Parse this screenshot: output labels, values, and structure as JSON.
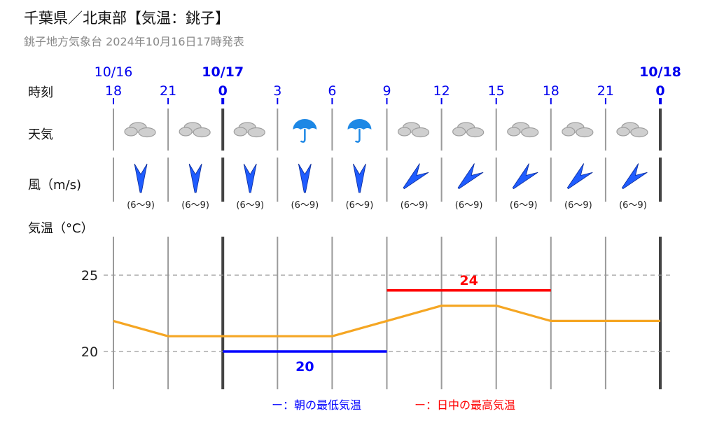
{
  "header": {
    "title": "千葉県／北東部【気温：銚子】",
    "subtitle": "銚子地方気象台 2024年10月16日17時発表"
  },
  "rows": {
    "time_label": "時刻",
    "weather_label": "天気",
    "wind_label": "風（m/s)",
    "temp_label": "気温（°C）"
  },
  "colors": {
    "date_blue": "#0000ee",
    "temp_line": "#f5a623",
    "min_line": "#0000ff",
    "max_line": "#ff0000",
    "wind_arrow": "#1f5cff",
    "umbrella": "#1e88e5",
    "cloud": "#b0b0b0"
  },
  "forecast": {
    "dates": [
      {
        "label": "10/16",
        "slot": 0,
        "bold": false
      },
      {
        "label": "10/17",
        "slot": 2,
        "bold": true
      },
      {
        "label": "10/18",
        "slot": 10,
        "bold": true
      }
    ],
    "hours": [
      {
        "label": "18",
        "bold": false
      },
      {
        "label": "21",
        "bold": false
      },
      {
        "label": "0",
        "bold": true
      },
      {
        "label": "3",
        "bold": false
      },
      {
        "label": "6",
        "bold": false
      },
      {
        "label": "9",
        "bold": false
      },
      {
        "label": "12",
        "bold": false
      },
      {
        "label": "15",
        "bold": false
      },
      {
        "label": "18",
        "bold": false
      },
      {
        "label": "21",
        "bold": false
      },
      {
        "label": "0",
        "bold": true
      }
    ],
    "weather": [
      "cloud-icon",
      "cloud-icon",
      "cloud-icon",
      "umbrella-icon",
      "umbrella-icon",
      "cloud-icon",
      "cloud-icon",
      "cloud-icon",
      "cloud-icon",
      "cloud-icon"
    ],
    "wind": [
      {
        "direction": "N",
        "speed": "(6～9)"
      },
      {
        "direction": "N",
        "speed": "(6～9)"
      },
      {
        "direction": "N",
        "speed": "(6～9)"
      },
      {
        "direction": "N",
        "speed": "(6～9)"
      },
      {
        "direction": "N",
        "speed": "(6～9)"
      },
      {
        "direction": "NE",
        "speed": "(6～9)"
      },
      {
        "direction": "NE",
        "speed": "(6～9)"
      },
      {
        "direction": "NE",
        "speed": "(6～9)"
      },
      {
        "direction": "NE",
        "speed": "(6～9)"
      },
      {
        "direction": "NE",
        "speed": "(6～9)"
      }
    ]
  },
  "chart_data": {
    "type": "line",
    "x": [
      "18",
      "21",
      "0",
      "3",
      "6",
      "9",
      "12",
      "15",
      "18",
      "21",
      "0"
    ],
    "series": [
      {
        "values": [
          22,
          21,
          21,
          21,
          21,
          22,
          23,
          23,
          22,
          22,
          22
        ]
      }
    ],
    "yticks": [
      20,
      25
    ],
    "ylim": [
      17.5,
      28
    ],
    "min_temp": {
      "value": 20,
      "label": "20",
      "from": "0",
      "to": "9"
    },
    "max_temp": {
      "value": 24,
      "label": "24",
      "from": "9",
      "to": "18"
    },
    "legend": [
      {
        "label": "ー：朝の最低気温",
        "color": "#0000ff"
      },
      {
        "label": "ー：日中の最高気温",
        "color": "#ff0000"
      }
    ],
    "legend_position": "bottom"
  }
}
